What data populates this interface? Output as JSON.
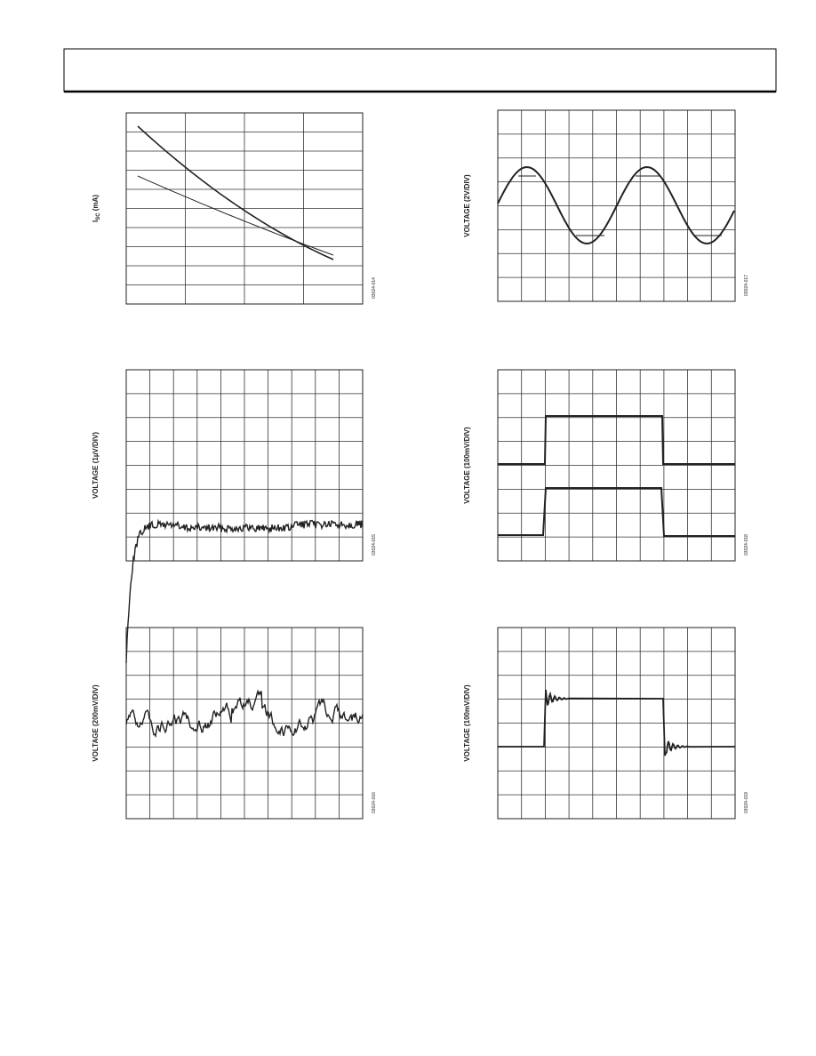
{
  "figures": [
    {
      "y_label": "I",
      "y_label_sub": "SC",
      "y_label_unit": " (mA)",
      "code": "03024-014"
    },
    {
      "y_label": "VOLTAGE (2V/DIV)",
      "code": "03024-017"
    },
    {
      "y_label": "VOLTAGE (1µV/DIV)",
      "code": "03024-015"
    },
    {
      "y_label": "VOLTAGE (100mV/DIV)",
      "code": "03024-018"
    },
    {
      "y_label": "VOLTAGE (200mV/DIV)",
      "code": "03024-016"
    },
    {
      "y_label": "VOLTAGE (100mV/DIV)",
      "code": "03024-019"
    }
  ]
}
